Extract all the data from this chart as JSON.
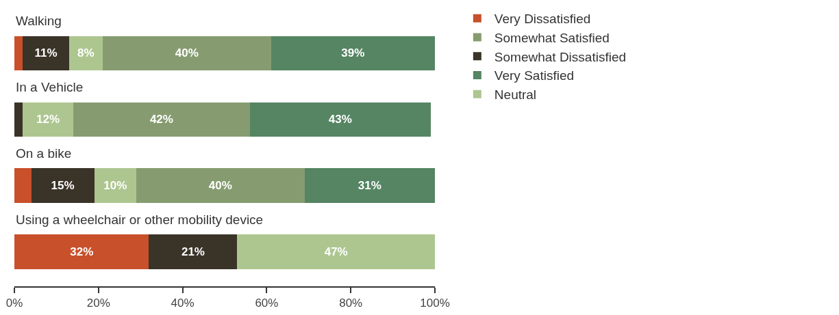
{
  "chart_data": {
    "type": "bar",
    "orientation": "horizontal",
    "stacked": true,
    "categories": [
      "Walking",
      "In a Vehicle",
      "On a bike",
      "Using a wheelchair or other mobility device"
    ],
    "series": [
      {
        "name": "Very Dissatisfied",
        "color": "#c8502a",
        "values": [
          2,
          0,
          4,
          32
        ],
        "value_labels": [
          null,
          null,
          null,
          "32%"
        ]
      },
      {
        "name": "Somewhat Dissatisfied",
        "color": "#3a3328",
        "values": [
          11,
          2,
          15,
          21
        ],
        "value_labels": [
          "11%",
          null,
          "15%",
          "21%"
        ]
      },
      {
        "name": "Neutral",
        "color": "#adc690",
        "values": [
          8,
          12,
          10,
          47
        ],
        "value_labels": [
          "8%",
          "12%",
          "10%",
          "47%"
        ]
      },
      {
        "name": "Somewhat Satisfied",
        "color": "#869c70",
        "values": [
          40,
          42,
          40,
          0
        ],
        "value_labels": [
          "40%",
          "42%",
          "40%",
          null
        ]
      },
      {
        "name": "Very Satisfied",
        "color": "#558563",
        "values": [
          39,
          43,
          31,
          0
        ],
        "value_labels": [
          "39%",
          "43%",
          "31%",
          null
        ]
      }
    ],
    "xlim": [
      0,
      100
    ],
    "xticks": [
      {
        "value": 0,
        "label": "0%"
      },
      {
        "value": 20,
        "label": "20%"
      },
      {
        "value": 40,
        "label": "40%"
      },
      {
        "value": 60,
        "label": "60%"
      },
      {
        "value": 80,
        "label": "80%"
      },
      {
        "value": 100,
        "label": "100%"
      }
    ],
    "grid": false,
    "legend": "top right",
    "tick_labels": "x"
  }
}
